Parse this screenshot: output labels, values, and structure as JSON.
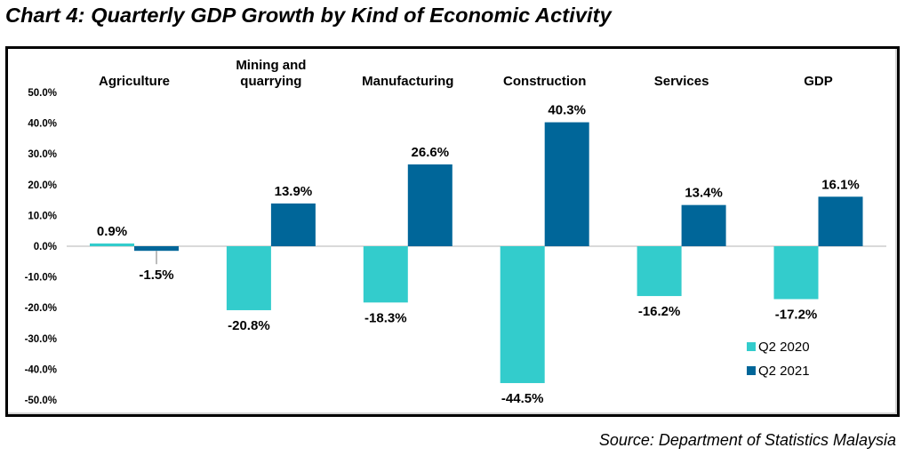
{
  "title": "Chart 4: Quarterly GDP Growth by Kind of Economic Activity",
  "source": "Source: Department of Statistics Malaysia",
  "chart_data": {
    "type": "bar",
    "title": "Chart 4: Quarterly GDP Growth by Kind of Economic Activity",
    "xlabel": "",
    "ylabel": "",
    "ylim": [
      -50,
      50
    ],
    "yticks": [
      50,
      40,
      30,
      20,
      10,
      0,
      -10,
      -20,
      -30,
      -40,
      -50
    ],
    "ytick_labels": [
      "50.0%",
      "40.0%",
      "30.0%",
      "20.0%",
      "10.0%",
      "0.0%",
      "-10.0%",
      "-20.0%",
      "-30.0%",
      "-40.0%",
      "-50.0%"
    ],
    "grid": false,
    "categories": [
      [
        "Agriculture"
      ],
      [
        "Mining and",
        "quarrying"
      ],
      [
        "Manufacturing"
      ],
      [
        "Construction"
      ],
      [
        "Services"
      ],
      [
        "GDP"
      ]
    ],
    "category_names": [
      "Agriculture",
      "Mining and quarrying",
      "Manufacturing",
      "Construction",
      "Services",
      "GDP"
    ],
    "series": [
      {
        "name": "Q2 2020",
        "color": "#33CCCC",
        "values": [
          0.9,
          -20.8,
          -18.3,
          -44.5,
          -16.2,
          -17.2
        ],
        "labels": [
          "0.9%",
          "-20.8%",
          "-18.3%",
          "-44.5%",
          "-16.2%",
          "-17.2%"
        ]
      },
      {
        "name": "Q2 2021",
        "color": "#006699",
        "values": [
          -1.5,
          13.9,
          26.6,
          40.3,
          13.4,
          16.1
        ],
        "labels": [
          "-1.5%",
          "13.9%",
          "26.6%",
          "40.3%",
          "13.4%",
          "16.1%"
        ]
      }
    ],
    "legend": {
      "position": "bottom-right",
      "entries": [
        "Q2 2020",
        "Q2 2021"
      ]
    },
    "zero_line_color": "#D9D9D9",
    "leader_line_color": "#A6A6A6"
  }
}
